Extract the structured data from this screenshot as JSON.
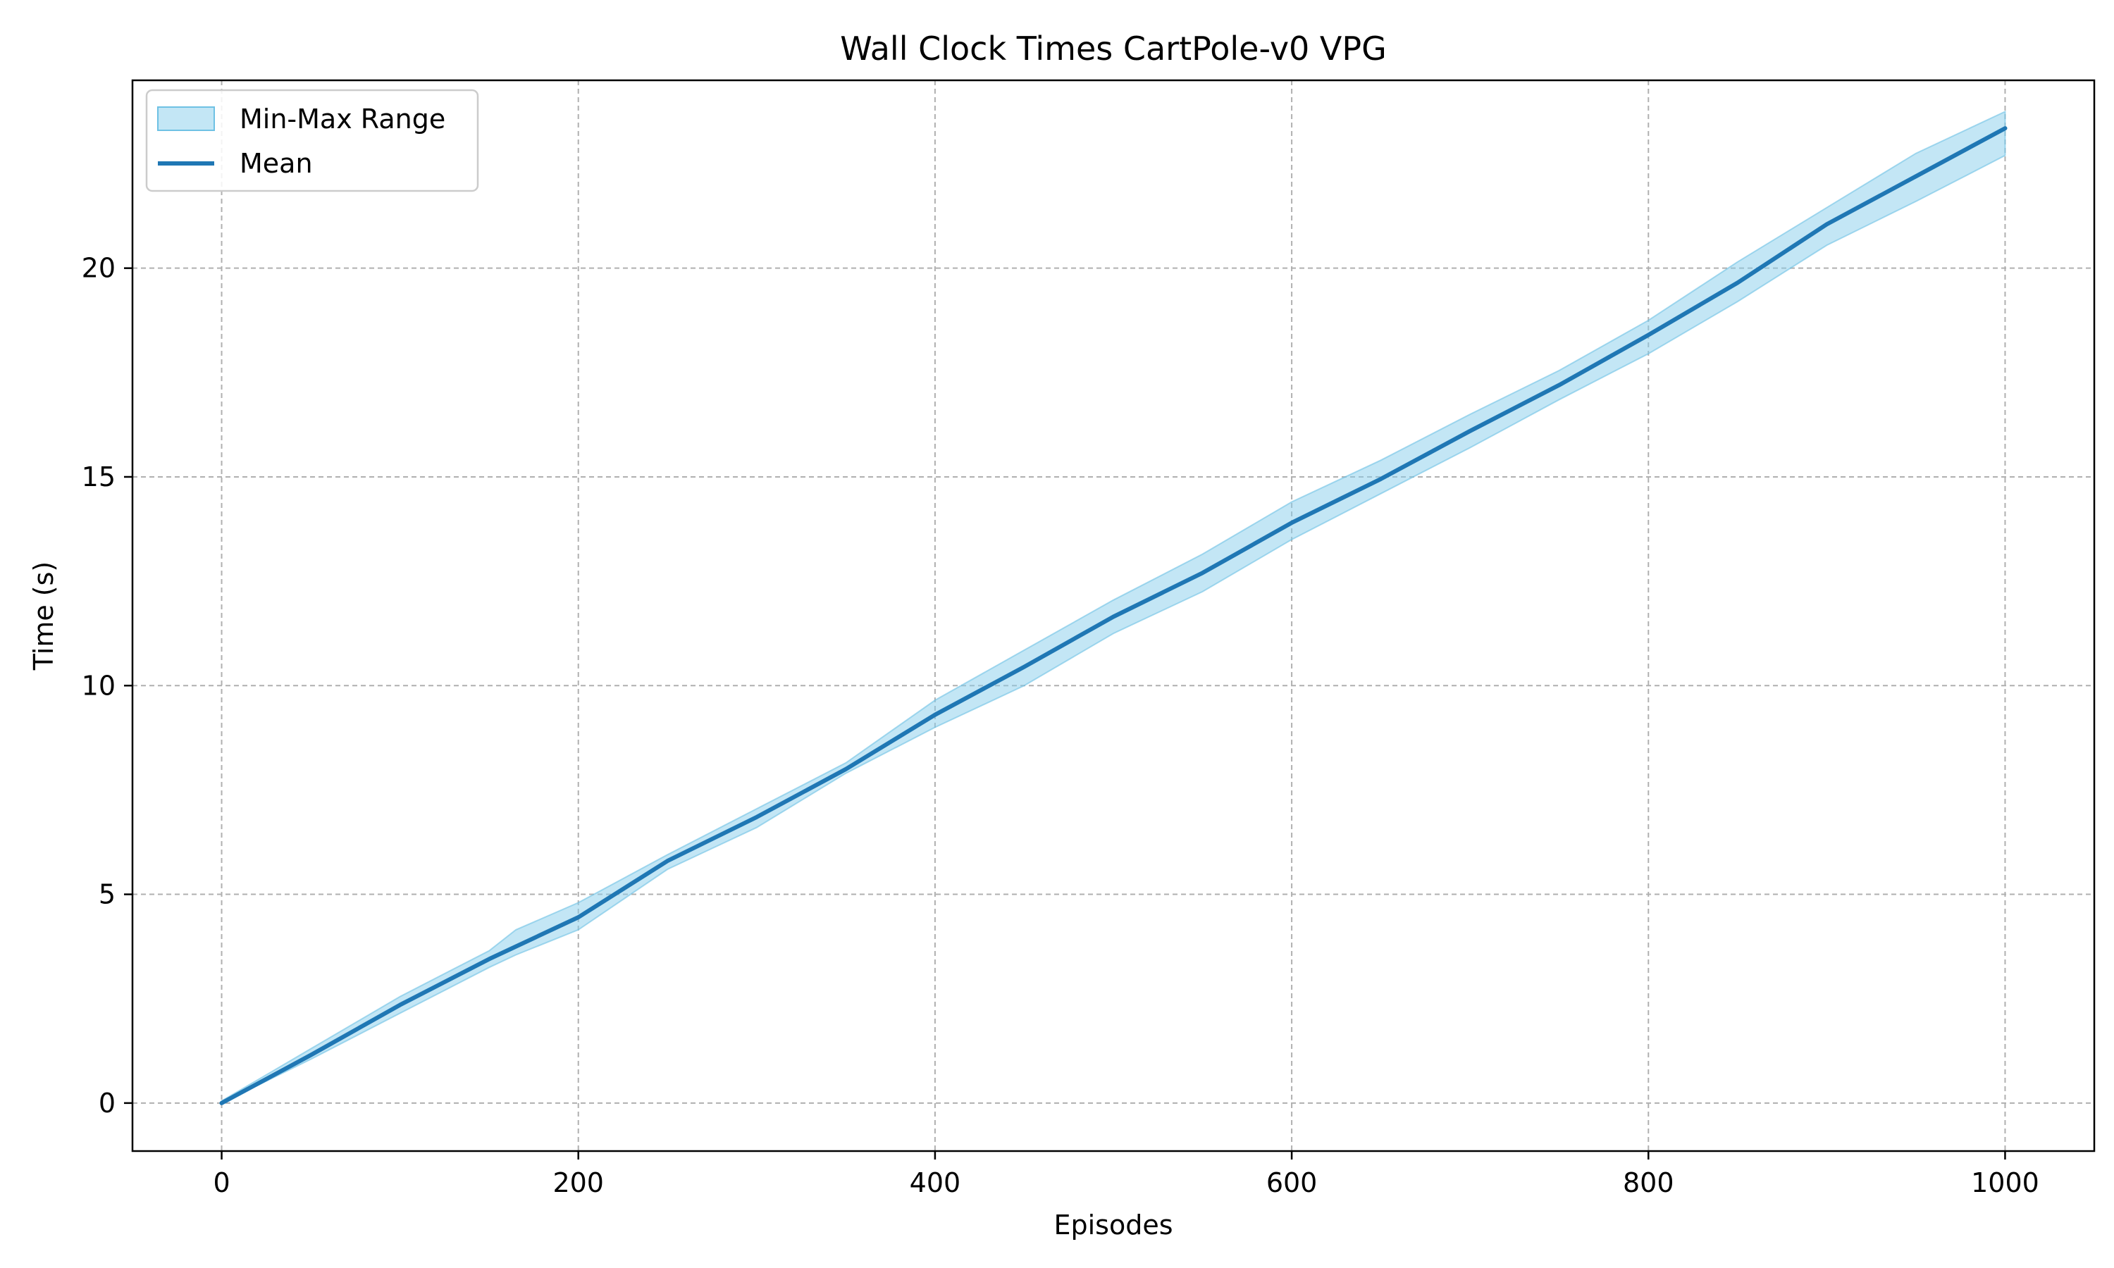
{
  "chart_data": {
    "type": "line",
    "title": "Wall Clock Times CartPole-v0 VPG",
    "xlabel": "Episodes",
    "ylabel": "Time (s)",
    "xlim": [
      -50,
      1050
    ],
    "ylim": [
      -1.15,
      24.5
    ],
    "xticks": [
      0,
      200,
      400,
      600,
      800,
      1000
    ],
    "yticks": [
      0,
      5,
      10,
      15,
      20
    ],
    "grid": true,
    "legend_position": "top-left",
    "legend": [
      "Min-Max Range",
      "Mean"
    ],
    "colors": {
      "band_fill": "#87ceeb",
      "band_edge": "#6ec1e4",
      "mean_line": "#1f77b4",
      "grid": "#b0b0b0",
      "axis": "#000000"
    },
    "x": [
      0,
      50,
      100,
      150,
      165,
      200,
      250,
      300,
      350,
      400,
      450,
      500,
      550,
      600,
      650,
      700,
      750,
      800,
      850,
      900,
      950,
      1000
    ],
    "series": [
      {
        "name": "Mean",
        "values": [
          0.0,
          1.15,
          2.35,
          3.45,
          3.75,
          4.45,
          5.8,
          6.85,
          8.0,
          9.3,
          10.45,
          11.65,
          12.7,
          13.9,
          14.95,
          16.1,
          17.2,
          18.4,
          19.65,
          21.05,
          22.2,
          23.35
        ]
      },
      {
        "name": "Min-Max Range",
        "lower": [
          0.0,
          1.05,
          2.15,
          3.25,
          3.55,
          4.15,
          5.6,
          6.6,
          7.9,
          9.0,
          10.0,
          11.25,
          12.25,
          13.5,
          14.6,
          15.7,
          16.85,
          17.95,
          19.2,
          20.55,
          21.6,
          22.7
        ],
        "upper": [
          0.05,
          1.3,
          2.55,
          3.65,
          4.15,
          4.8,
          5.95,
          7.05,
          8.15,
          9.65,
          10.85,
          12.05,
          13.15,
          14.4,
          15.4,
          16.5,
          17.55,
          18.75,
          20.15,
          21.45,
          22.75,
          23.75
        ]
      }
    ]
  }
}
